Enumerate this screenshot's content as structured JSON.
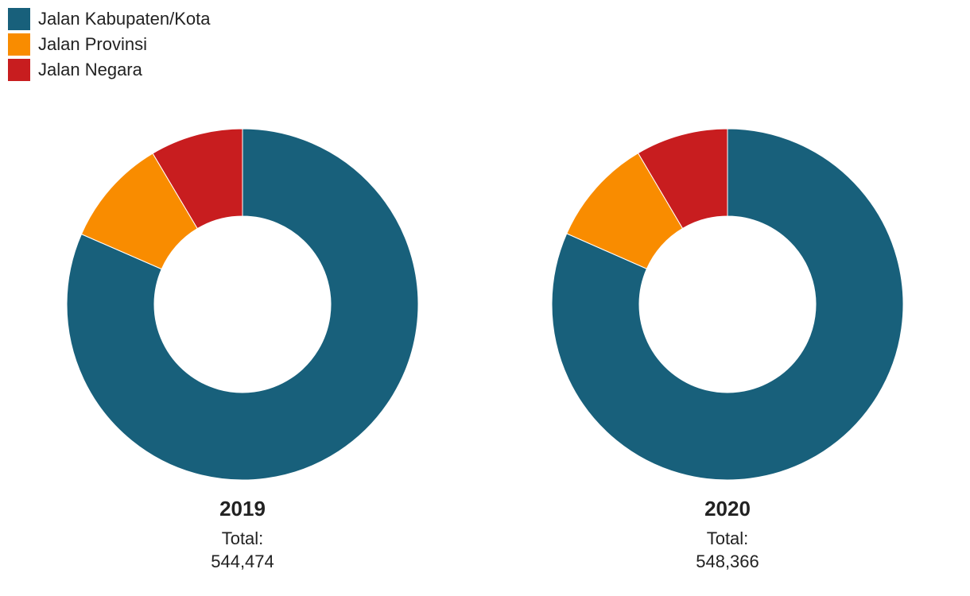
{
  "legend": [
    {
      "label": "Jalan Kabupaten/Kota",
      "color": "#18607b"
    },
    {
      "label": "Jalan Provinsi",
      "color": "#f98c00"
    },
    {
      "label": "Jalan Negara",
      "color": "#c81d1f"
    }
  ],
  "chart_data": [
    {
      "type": "pie",
      "title": "2019",
      "total_label": "Total:",
      "total": "544,474",
      "slices": [
        {
          "name": "Jalan Kabupaten/Kota",
          "value": 444000,
          "color": "#18607b"
        },
        {
          "name": "Jalan Provinsi",
          "value": 54000,
          "color": "#f98c00"
        },
        {
          "name": "Jalan Negara",
          "value": 46474,
          "color": "#c81d1f"
        }
      ]
    },
    {
      "type": "pie",
      "title": "2020",
      "total_label": "Total:",
      "total": "548,366",
      "slices": [
        {
          "name": "Jalan Kabupaten/Kota",
          "value": 447500,
          "color": "#18607b"
        },
        {
          "name": "Jalan Provinsi",
          "value": 54300,
          "color": "#f98c00"
        },
        {
          "name": "Jalan Negara",
          "value": 46566,
          "color": "#c81d1f"
        }
      ]
    }
  ]
}
